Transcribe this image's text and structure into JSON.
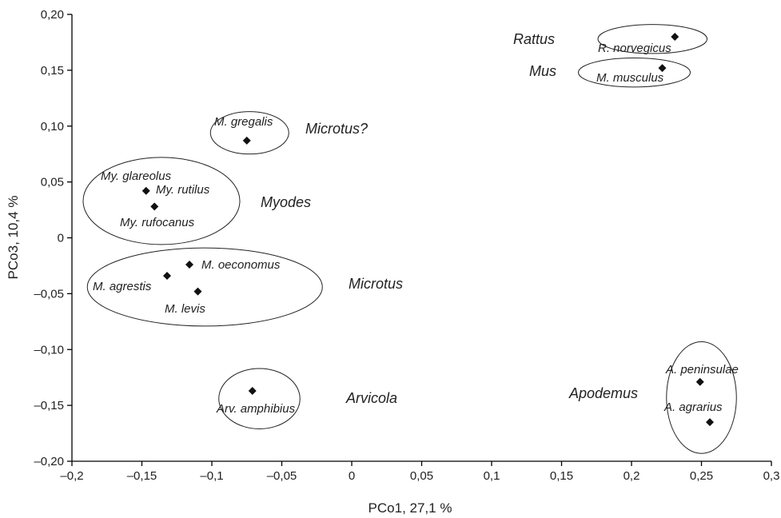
{
  "chart_data": {
    "type": "scatter",
    "title": "",
    "xlabel": "PCo1,  27,1 %",
    "ylabel": "PCo3,  10,4 %",
    "xlim": [
      -0.2,
      0.3
    ],
    "ylim": [
      -0.2,
      0.2
    ],
    "x_ticks": [
      -0.2,
      -0.15,
      -0.1,
      -0.05,
      0,
      0.05,
      0.1,
      0.15,
      0.2,
      0.25,
      0.3
    ],
    "x_tick_labels": [
      "–0,2",
      "–0,15",
      "–0,1",
      "–0,05",
      "0",
      "0,05",
      "0,1",
      "0,15",
      "0,2",
      "0,25",
      "0,3"
    ],
    "y_ticks": [
      -0.2,
      -0.15,
      -0.1,
      -0.05,
      0,
      0.05,
      0.1,
      0.15,
      0.2
    ],
    "y_tick_labels": [
      "–0,20",
      "–0,15",
      "–0,10",
      "–0,05",
      "0",
      "0,05",
      "0,10",
      "0,15",
      "0,20"
    ],
    "grid": false,
    "points": [
      {
        "label": "R. norvegicus",
        "x": 0.231,
        "y": 0.18
      },
      {
        "label": "M. musculus",
        "x": 0.222,
        "y": 0.152
      },
      {
        "label": "M. gregalis",
        "x": -0.075,
        "y": 0.087
      },
      {
        "label": "My. glareolus",
        "x": -0.147,
        "y": 0.042
      },
      {
        "label": "My. rutilus",
        "x": -0.147,
        "y": 0.042
      },
      {
        "label": "My. rufocanus",
        "x": -0.141,
        "y": 0.028
      },
      {
        "label": "M. oeconomus",
        "x": -0.116,
        "y": -0.024
      },
      {
        "label": "M. agrestis",
        "x": -0.132,
        "y": -0.034
      },
      {
        "label": "M. levis",
        "x": -0.11,
        "y": -0.048
      },
      {
        "label": "Arv. amphibius",
        "x": -0.071,
        "y": -0.137
      },
      {
        "label": "A. peninsulae",
        "x": 0.249,
        "y": -0.129
      },
      {
        "label": "A. agrarius",
        "x": 0.256,
        "y": -0.165
      }
    ],
    "groups": [
      {
        "label": "Rattus",
        "cx": 0.215,
        "cy": 0.178,
        "rx": 0.039,
        "ry": 0.013
      },
      {
        "label": "Mus",
        "cx": 0.202,
        "cy": 0.148,
        "rx": 0.04,
        "ry": 0.013
      },
      {
        "label": "Microtus?",
        "cx": -0.073,
        "cy": 0.094,
        "rx": 0.028,
        "ry": 0.019
      },
      {
        "label": "Myodes",
        "cx": -0.136,
        "cy": 0.033,
        "rx": 0.056,
        "ry": 0.039
      },
      {
        "label": "Microtus",
        "cx": -0.105,
        "cy": -0.044,
        "rx": 0.084,
        "ry": 0.035
      },
      {
        "label": "Arvicola",
        "cx": -0.066,
        "cy": -0.144,
        "rx": 0.029,
        "ry": 0.027
      },
      {
        "label": "Apodemus",
        "cx": 0.25,
        "cy": -0.143,
        "rx": 0.025,
        "ry": 0.05
      }
    ]
  }
}
